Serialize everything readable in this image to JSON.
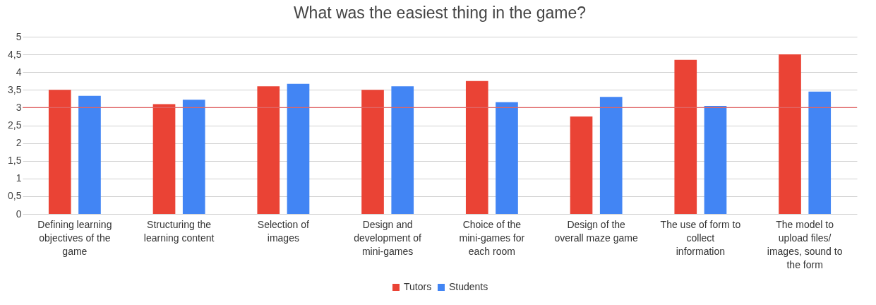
{
  "chart_data": {
    "type": "bar",
    "title": "What was the easiest thing in the game?",
    "categories": [
      "Defining learning objectives of the game",
      "Structuring the learning content",
      "Selection of images",
      "Design and development of mini-games",
      "Choice of the mini-games for each room",
      "Design of the overall maze game",
      "The use of form to collect information",
      "The model to upload files/ images, sound to the form"
    ],
    "series": [
      {
        "name": "Tutors",
        "color": "#ea4335",
        "values": [
          3.5,
          3.1,
          3.6,
          3.5,
          3.75,
          2.75,
          4.35,
          4.5
        ]
      },
      {
        "name": "Students",
        "color": "#4285f4",
        "values": [
          3.33,
          3.22,
          3.67,
          3.6,
          3.15,
          3.3,
          3.05,
          3.45
        ]
      }
    ],
    "ylim": [
      0,
      5
    ],
    "yticks": [
      0,
      {
        "value": 0.5,
        "label": "0,5"
      },
      1,
      {
        "value": 1.5,
        "label": "1,5"
      },
      2,
      {
        "value": 2.5,
        "label": "2,5"
      },
      3,
      {
        "value": 3.5,
        "label": "3,5"
      },
      4,
      {
        "value": 4.5,
        "label": "4,5"
      },
      5
    ],
    "grid": "y",
    "legend": "bottom",
    "ref_lines": [
      {
        "axis": "y",
        "value": 3,
        "color": "#e06666"
      }
    ]
  }
}
